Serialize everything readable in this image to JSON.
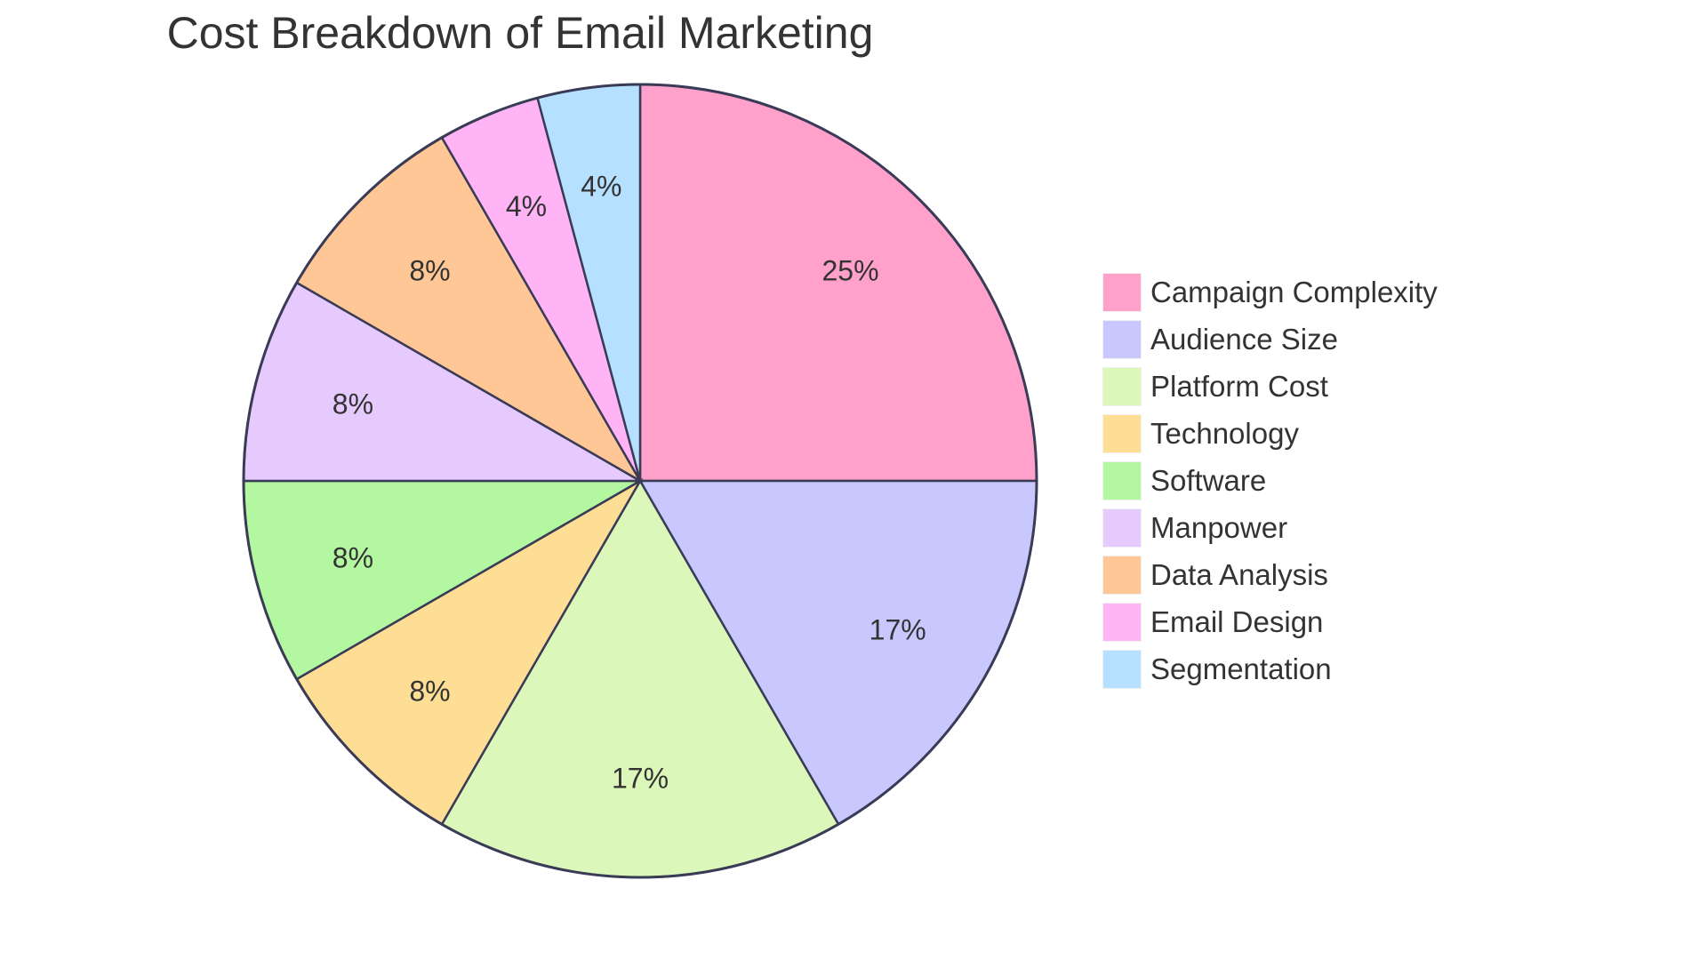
{
  "chart_data": {
    "type": "pie",
    "title": "Cost Breakdown of Email Marketing",
    "categories": [
      "Campaign Complexity",
      "Audience Size",
      "Platform Cost",
      "Technology",
      "Software",
      "Manpower",
      "Data Analysis",
      "Email Design",
      "Segmentation"
    ],
    "values": [
      25,
      17,
      17,
      8,
      8,
      8,
      8,
      4,
      4
    ],
    "labels": [
      "25%",
      "17%",
      "17%",
      "8%",
      "8%",
      "8%",
      "8%",
      "4%",
      "4%"
    ],
    "colors": [
      "#FFA1CB",
      "#C8C8FF",
      "#DBF8BA",
      "#FEDE94",
      "#B3F7A0",
      "#E6CAFD",
      "#FFC795",
      "#FFB4F6",
      "#B6E0FF"
    ],
    "legend_position": "right"
  },
  "title": "Cost Breakdown of Email Marketing",
  "legend": [
    {
      "label": "Campaign Complexity",
      "color": "#FFA1CB"
    },
    {
      "label": "Audience Size",
      "color": "#C8C8FF"
    },
    {
      "label": "Platform Cost",
      "color": "#DBF8BA"
    },
    {
      "label": "Technology",
      "color": "#FEDE94"
    },
    {
      "label": "Software",
      "color": "#B3F7A0"
    },
    {
      "label": "Manpower",
      "color": "#E6CAFD"
    },
    {
      "label": "Data Analysis",
      "color": "#FFC795"
    },
    {
      "label": "Email Design",
      "color": "#FFB4F6"
    },
    {
      "label": "Segmentation",
      "color": "#B6E0FF"
    }
  ]
}
